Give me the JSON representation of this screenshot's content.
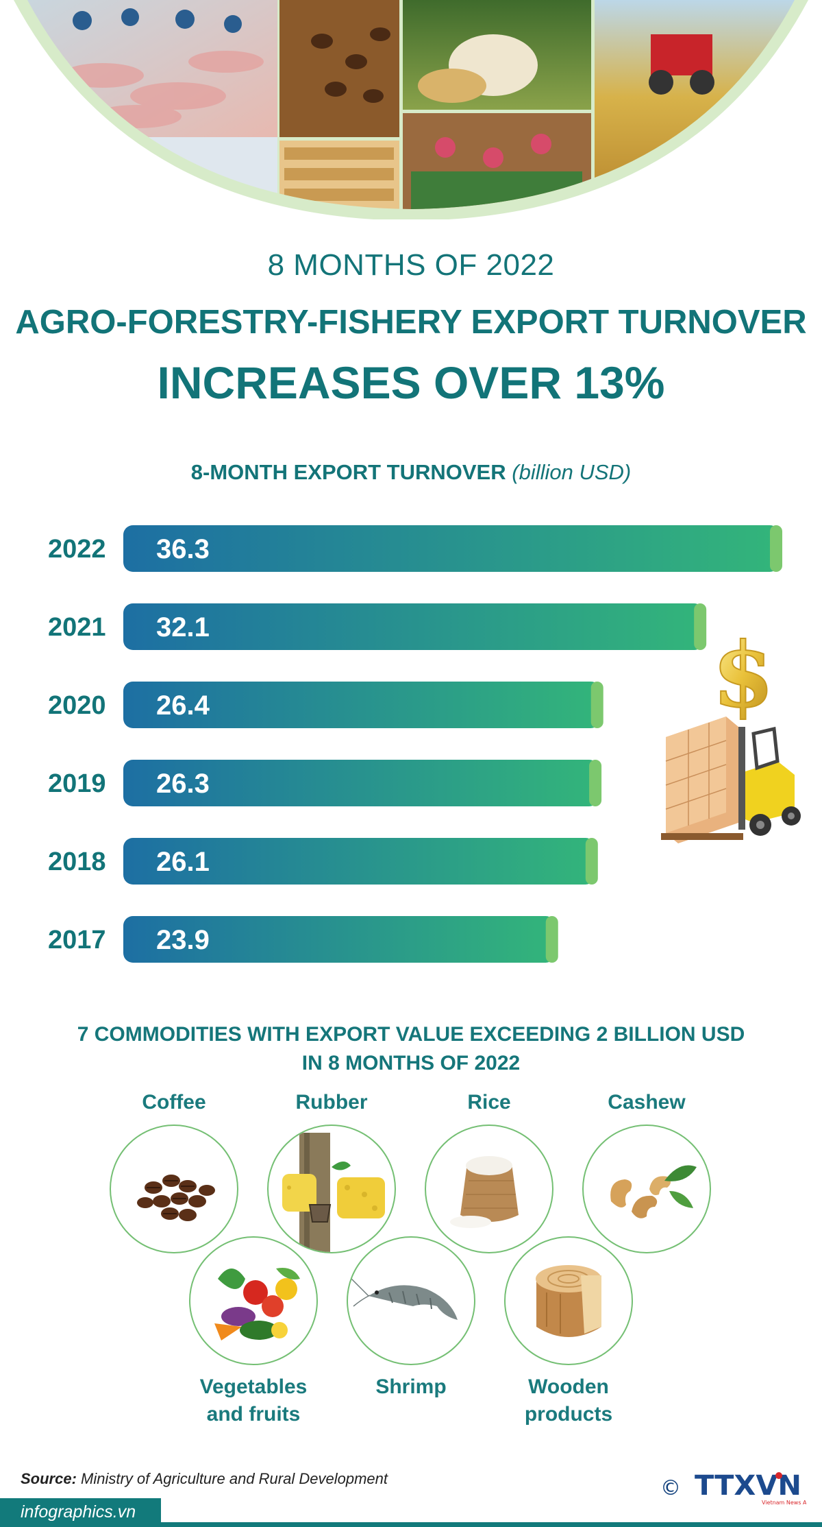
{
  "header": {
    "subtitle": "8 MONTHS OF 2022",
    "title_line1": "AGRO-FORESTRY-FISHERY EXPORT TURNOVER",
    "title_line2": "INCREASES OVER 13%"
  },
  "chart_data": {
    "type": "bar",
    "orientation": "horizontal",
    "title": "8-MONTH EXPORT TURNOVER",
    "unit": "(billion USD)",
    "categories": [
      "2022",
      "2021",
      "2020",
      "2019",
      "2018",
      "2017"
    ],
    "values": [
      36.3,
      32.1,
      26.4,
      26.3,
      26.1,
      23.9
    ],
    "value_labels": [
      "36.3",
      "32.1",
      "26.4",
      "26.3",
      "26.1",
      "23.9"
    ],
    "xlim": [
      0,
      36.3
    ],
    "grid": false,
    "legend": "none",
    "colors": {
      "bar_start": "#1d6fa3",
      "bar_end": "#33b57a",
      "cap": "#7cc86e",
      "label": "#127478"
    }
  },
  "commodities": {
    "title_line1": "7 COMMODITIES WITH EXPORT VALUE EXCEEDING 2 BILLION USD",
    "title_line2": "IN 8 MONTHS OF 2022",
    "items": [
      {
        "label": "Coffee",
        "icon": "coffee-beans-icon"
      },
      {
        "label": "Rubber",
        "icon": "rubber-tree-icon"
      },
      {
        "label": "Rice",
        "icon": "rice-sack-icon"
      },
      {
        "label": "Cashew",
        "icon": "cashew-icon"
      },
      {
        "label": "Vegetables and fruits",
        "line1": "Vegetables",
        "line2": "and fruits",
        "icon": "vegetables-icon"
      },
      {
        "label": "Shrimp",
        "icon": "shrimp-icon"
      },
      {
        "label": "Wooden products",
        "line1": "Wooden",
        "line2": "products",
        "icon": "wood-log-icon"
      }
    ]
  },
  "footer": {
    "source_label": "Source:",
    "source_text": "Ministry of Agriculture and Rural Development",
    "site": "infographics.vn",
    "copyright": "©",
    "logo_text": "TTXVN",
    "logo_sub": "Vietnam News Agency"
  },
  "colors": {
    "teal": "#127478",
    "green": "#74bf73"
  }
}
